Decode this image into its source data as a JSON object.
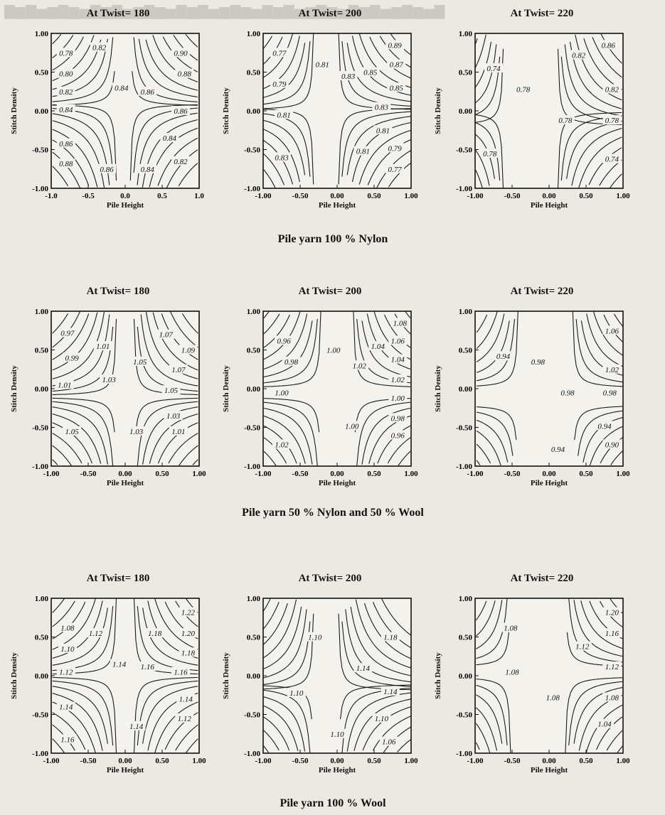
{
  "row_captions": [
    "Pile yarn 100 % Nylon",
    "Pile yarn 50 % Nylon and 50 % Wool",
    "Pile yarn 100 % Wool"
  ],
  "chart_data": [
    {
      "type": "contour",
      "row": 0,
      "col": 0,
      "title": "At Twist= 180",
      "xlabel": "Pile Height",
      "ylabel": "Stitch Density",
      "xlim": [
        -1,
        1
      ],
      "ylim": [
        -1,
        1
      ],
      "xticks": [
        "-1.0",
        "-0.5",
        "0.0",
        "0.5",
        "1.0"
      ],
      "yticks": [
        "1.00",
        "0.50",
        "0.00",
        "-0.50",
        "-1.00"
      ],
      "contour_labels": [
        {
          "text": "0.78",
          "x": -0.8,
          "y": 0.75
        },
        {
          "text": "0.80",
          "x": -0.8,
          "y": 0.48
        },
        {
          "text": "0.82",
          "x": -0.8,
          "y": 0.25
        },
        {
          "text": "0.84",
          "x": -0.8,
          "y": 0.02
        },
        {
          "text": "0.86",
          "x": -0.8,
          "y": -0.42
        },
        {
          "text": "0.88",
          "x": -0.8,
          "y": -0.68
        },
        {
          "text": "0.82",
          "x": -0.35,
          "y": 0.82
        },
        {
          "text": "0.84",
          "x": -0.05,
          "y": 0.3
        },
        {
          "text": "0.86",
          "x": 0.3,
          "y": 0.25
        },
        {
          "text": "0.90",
          "x": 0.75,
          "y": 0.75
        },
        {
          "text": "0.88",
          "x": 0.8,
          "y": 0.48
        },
        {
          "text": "0.86",
          "x": 0.75,
          "y": 0.0
        },
        {
          "text": "0.84",
          "x": 0.6,
          "y": -0.35
        },
        {
          "text": "0.82",
          "x": 0.75,
          "y": -0.65
        },
        {
          "text": "0.84",
          "x": 0.3,
          "y": -0.75
        },
        {
          "text": "0.86",
          "x": -0.25,
          "y": -0.75
        }
      ]
    },
    {
      "type": "contour",
      "row": 0,
      "col": 1,
      "title": "At Twist= 200",
      "xlabel": "Pile Height",
      "ylabel": "Stitch Density",
      "xlim": [
        -1,
        1
      ],
      "ylim": [
        -1,
        1
      ],
      "xticks": [
        "-1.00",
        "-0.50",
        "0.00",
        "0.50",
        "1.00"
      ],
      "yticks": [
        "1.00",
        "0.50",
        "0.00",
        "-0.50",
        "-1.00"
      ],
      "contour_labels": [
        {
          "text": "0.77",
          "x": -0.78,
          "y": 0.75
        },
        {
          "text": "0.79",
          "x": -0.78,
          "y": 0.35
        },
        {
          "text": "0.81",
          "x": -0.72,
          "y": -0.05
        },
        {
          "text": "0.83",
          "x": -0.75,
          "y": -0.6
        },
        {
          "text": "0.81",
          "x": -0.2,
          "y": 0.6
        },
        {
          "text": "0.83",
          "x": 0.15,
          "y": 0.45
        },
        {
          "text": "0.85",
          "x": 0.45,
          "y": 0.5
        },
        {
          "text": "0.89",
          "x": 0.78,
          "y": 0.85
        },
        {
          "text": "0.87",
          "x": 0.8,
          "y": 0.6
        },
        {
          "text": "0.85",
          "x": 0.8,
          "y": 0.3
        },
        {
          "text": "0.83",
          "x": 0.6,
          "y": 0.05
        },
        {
          "text": "0.81",
          "x": 0.62,
          "y": -0.25
        },
        {
          "text": "0.79",
          "x": 0.78,
          "y": -0.48
        },
        {
          "text": "0.77",
          "x": 0.78,
          "y": -0.75
        },
        {
          "text": "0.81",
          "x": 0.35,
          "y": -0.52
        }
      ]
    },
    {
      "type": "contour",
      "row": 0,
      "col": 2,
      "title": "At Twist= 220",
      "xlabel": "Pile Height",
      "ylabel": "Stitch Density",
      "xlim": [
        -1,
        1
      ],
      "ylim": [
        -1,
        1
      ],
      "xticks": [
        "-1.00",
        "-0.50",
        "0.00",
        "0.50",
        "1.00"
      ],
      "yticks": [
        "1.00",
        "0.50",
        "0.00",
        "-0.50",
        "-1.00"
      ],
      "contour_labels": [
        {
          "text": "0.74",
          "x": -0.75,
          "y": 0.55
        },
        {
          "text": "0.78",
          "x": -0.35,
          "y": 0.28
        },
        {
          "text": "0.82",
          "x": 0.4,
          "y": 0.72
        },
        {
          "text": "0.86",
          "x": 0.8,
          "y": 0.85
        },
        {
          "text": "0.82",
          "x": 0.85,
          "y": 0.28
        },
        {
          "text": "0.78",
          "x": 0.22,
          "y": -0.12
        },
        {
          "text": "0.78",
          "x": 0.85,
          "y": -0.12
        },
        {
          "text": "0.78",
          "x": -0.8,
          "y": -0.55
        },
        {
          "text": "0.74",
          "x": 0.85,
          "y": -0.62
        }
      ]
    },
    {
      "type": "contour",
      "row": 1,
      "col": 0,
      "title": "At Twist= 180",
      "xlabel": "Pile Height",
      "ylabel": "Stitch Density",
      "xlim": [
        -1,
        1
      ],
      "ylim": [
        -1,
        1
      ],
      "xticks": [
        "-1.00",
        "-0.50",
        "0.00",
        "0.50",
        "1.00"
      ],
      "yticks": [
        "1.00",
        "0.50",
        "0.00",
        "-0.50",
        "-1.00"
      ],
      "contour_labels": [
        {
          "text": "0.97",
          "x": -0.78,
          "y": 0.72
        },
        {
          "text": "0.99",
          "x": -0.72,
          "y": 0.4
        },
        {
          "text": "1.01",
          "x": -0.3,
          "y": 0.55
        },
        {
          "text": "1.01",
          "x": -0.82,
          "y": 0.05
        },
        {
          "text": "1.03",
          "x": -0.22,
          "y": 0.12
        },
        {
          "text": "1.05",
          "x": 0.2,
          "y": 0.35
        },
        {
          "text": "1.07",
          "x": 0.55,
          "y": 0.7
        },
        {
          "text": "1.09",
          "x": 0.85,
          "y": 0.5
        },
        {
          "text": "1.07",
          "x": 0.72,
          "y": 0.25
        },
        {
          "text": "1.05",
          "x": 0.62,
          "y": -0.02
        },
        {
          "text": "1.03",
          "x": 0.65,
          "y": -0.35
        },
        {
          "text": "1.01",
          "x": 0.72,
          "y": -0.55
        },
        {
          "text": "1.05",
          "x": -0.72,
          "y": -0.55
        },
        {
          "text": "1.03",
          "x": 0.15,
          "y": -0.55
        }
      ]
    },
    {
      "type": "contour",
      "row": 1,
      "col": 1,
      "title": "At Twist= 200",
      "xlabel": "Pile Height",
      "ylabel": "Stitch Density",
      "xlim": [
        -1,
        1
      ],
      "ylim": [
        -1,
        1
      ],
      "xticks": [
        "-1.00",
        "-0.50",
        "0.00",
        "0.50",
        "1.00"
      ],
      "yticks": [
        "1.00",
        "0.50",
        "0.00",
        "-0.50",
        "-1.00"
      ],
      "contour_labels": [
        {
          "text": "0.96",
          "x": -0.72,
          "y": 0.62
        },
        {
          "text": "0.98",
          "x": -0.62,
          "y": 0.35
        },
        {
          "text": "1.00",
          "x": -0.05,
          "y": 0.5
        },
        {
          "text": "1.02",
          "x": 0.3,
          "y": 0.3
        },
        {
          "text": "1.04",
          "x": 0.55,
          "y": 0.55
        },
        {
          "text": "1.08",
          "x": 0.85,
          "y": 0.85
        },
        {
          "text": "1.06",
          "x": 0.82,
          "y": 0.62
        },
        {
          "text": "1.04",
          "x": 0.82,
          "y": 0.38
        },
        {
          "text": "1.02",
          "x": 0.82,
          "y": 0.12
        },
        {
          "text": "1.00",
          "x": 0.82,
          "y": -0.12
        },
        {
          "text": "0.98",
          "x": 0.82,
          "y": -0.38
        },
        {
          "text": "0.96",
          "x": 0.82,
          "y": -0.6
        },
        {
          "text": "1.00",
          "x": -0.75,
          "y": -0.05
        },
        {
          "text": "1.00",
          "x": 0.2,
          "y": -0.48
        },
        {
          "text": "1.02",
          "x": -0.75,
          "y": -0.72
        }
      ]
    },
    {
      "type": "contour",
      "row": 1,
      "col": 2,
      "title": "At Twist= 220",
      "xlabel": "Pile Height",
      "ylabel": "Stitch Density",
      "xlim": [
        -1,
        1
      ],
      "ylim": [
        -1,
        1
      ],
      "xticks": [
        "-1.00",
        "-0.50",
        "0.00",
        "0.50",
        "1.00"
      ],
      "yticks": [
        "1.00",
        "0.50",
        "0.00",
        "-0.50",
        "-1.00"
      ],
      "contour_labels": [
        {
          "text": "0.94",
          "x": -0.62,
          "y": 0.42
        },
        {
          "text": "0.98",
          "x": -0.15,
          "y": 0.35
        },
        {
          "text": "1.06",
          "x": 0.85,
          "y": 0.75
        },
        {
          "text": "1.02",
          "x": 0.85,
          "y": 0.25
        },
        {
          "text": "0.98",
          "x": 0.25,
          "y": -0.05
        },
        {
          "text": "0.98",
          "x": 0.82,
          "y": -0.05
        },
        {
          "text": "0.94",
          "x": 0.75,
          "y": -0.48
        },
        {
          "text": "0.90",
          "x": 0.85,
          "y": -0.72
        },
        {
          "text": "0.94",
          "x": 0.12,
          "y": -0.78
        }
      ]
    },
    {
      "type": "contour",
      "row": 2,
      "col": 0,
      "title": "At Twist= 180",
      "xlabel": "Pile Height",
      "ylabel": "Stitch Density",
      "xlim": [
        -1,
        1
      ],
      "ylim": [
        -1,
        1
      ],
      "xticks": [
        "-1.00",
        "-0.50",
        "0.00",
        "0.50",
        "1.00"
      ],
      "yticks": [
        "1.00",
        "0.50",
        "0.00",
        "-0.50",
        "-1.00"
      ],
      "contour_labels": [
        {
          "text": "1.08",
          "x": -0.78,
          "y": 0.62
        },
        {
          "text": "1.10",
          "x": -0.78,
          "y": 0.35
        },
        {
          "text": "1.12",
          "x": -0.4,
          "y": 0.55
        },
        {
          "text": "1.12",
          "x": -0.8,
          "y": 0.05
        },
        {
          "text": "1.14",
          "x": -0.08,
          "y": 0.15
        },
        {
          "text": "1.16",
          "x": 0.3,
          "y": 0.12
        },
        {
          "text": "1.18",
          "x": 0.4,
          "y": 0.55
        },
        {
          "text": "1.22",
          "x": 0.85,
          "y": 0.82
        },
        {
          "text": "1.20",
          "x": 0.85,
          "y": 0.55
        },
        {
          "text": "1.18",
          "x": 0.85,
          "y": 0.3
        },
        {
          "text": "1.16",
          "x": 0.75,
          "y": 0.05
        },
        {
          "text": "1.14",
          "x": 0.82,
          "y": -0.3
        },
        {
          "text": "1.12",
          "x": 0.8,
          "y": -0.55
        },
        {
          "text": "1.14",
          "x": -0.8,
          "y": -0.4
        },
        {
          "text": "1.14",
          "x": 0.15,
          "y": -0.65
        },
        {
          "text": "1.16",
          "x": -0.78,
          "y": -0.82
        }
      ]
    },
    {
      "type": "contour",
      "row": 2,
      "col": 1,
      "title": "At Twist= 200",
      "xlabel": "Pile Height",
      "ylabel": "Stitch Density",
      "xlim": [
        -1,
        1
      ],
      "ylim": [
        -1,
        1
      ],
      "xticks": [
        "-1.00",
        "-0.50",
        "0.00",
        "0.50",
        "1.00"
      ],
      "yticks": [
        "1.00",
        "0.50",
        "0.00",
        "-0.50",
        "-1.00"
      ],
      "contour_labels": [
        {
          "text": "1.10",
          "x": -0.3,
          "y": 0.5
        },
        {
          "text": "1.18",
          "x": 0.72,
          "y": 0.5
        },
        {
          "text": "1.14",
          "x": 0.35,
          "y": 0.1
        },
        {
          "text": "1.14",
          "x": 0.72,
          "y": -0.2
        },
        {
          "text": "1.10",
          "x": -0.55,
          "y": -0.22
        },
        {
          "text": "1.10",
          "x": 0.6,
          "y": -0.55
        },
        {
          "text": "1.10",
          "x": 0.0,
          "y": -0.75
        },
        {
          "text": "1.06",
          "x": 0.7,
          "y": -0.85
        }
      ]
    },
    {
      "type": "contour",
      "row": 2,
      "col": 2,
      "title": "At Twist= 220",
      "xlabel": "Pile Height",
      "ylabel": "Stitch Density",
      "xlim": [
        -1,
        1
      ],
      "ylim": [
        -1,
        1
      ],
      "xticks": [
        "-1.00",
        "-0.50",
        "0.00",
        "0.50",
        "1.00"
      ],
      "yticks": [
        "1.00",
        "0.50",
        "0.00",
        "-0.50",
        "-1.00"
      ],
      "contour_labels": [
        {
          "text": "1.08",
          "x": -0.52,
          "y": 0.62
        },
        {
          "text": "1.20",
          "x": 0.85,
          "y": 0.82
        },
        {
          "text": "1.16",
          "x": 0.85,
          "y": 0.55
        },
        {
          "text": "1.12",
          "x": 0.45,
          "y": 0.38
        },
        {
          "text": "1.12",
          "x": 0.85,
          "y": 0.12
        },
        {
          "text": "1.08",
          "x": -0.5,
          "y": 0.05
        },
        {
          "text": "1.08",
          "x": 0.05,
          "y": -0.28
        },
        {
          "text": "1.08",
          "x": 0.85,
          "y": -0.28
        },
        {
          "text": "1.04",
          "x": 0.75,
          "y": -0.62
        }
      ]
    }
  ]
}
